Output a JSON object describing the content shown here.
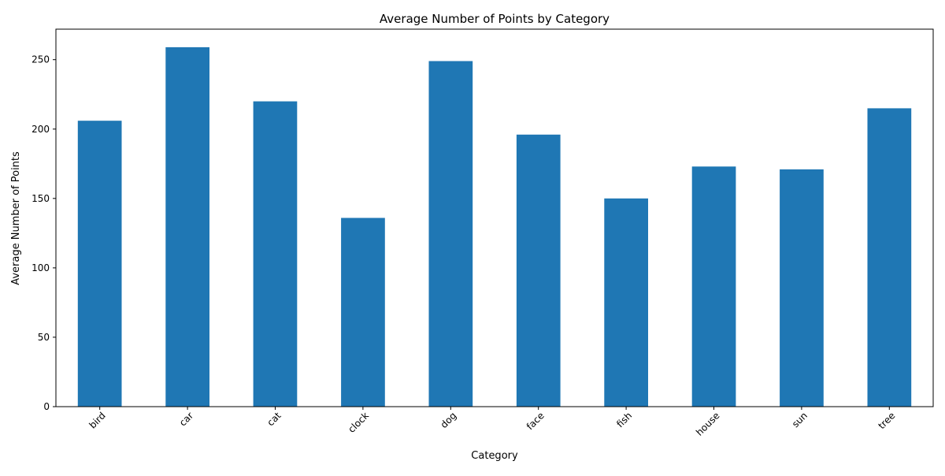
{
  "chart_data": {
    "type": "bar",
    "title": "Average Number of Points by Category",
    "xlabel": "Category",
    "ylabel": "Average Number of Points",
    "categories": [
      "bird",
      "car",
      "cat",
      "clock",
      "dog",
      "face",
      "fish",
      "house",
      "sun",
      "tree"
    ],
    "values": [
      206,
      259,
      220,
      136,
      249,
      196,
      150,
      173,
      171,
      215
    ],
    "ylim": [
      0,
      272
    ],
    "yticks": [
      0,
      50,
      100,
      150,
      200,
      250
    ],
    "x_tick_rotation": 45,
    "grid": false,
    "legend": "none",
    "bar_color": "#1f77b4"
  }
}
